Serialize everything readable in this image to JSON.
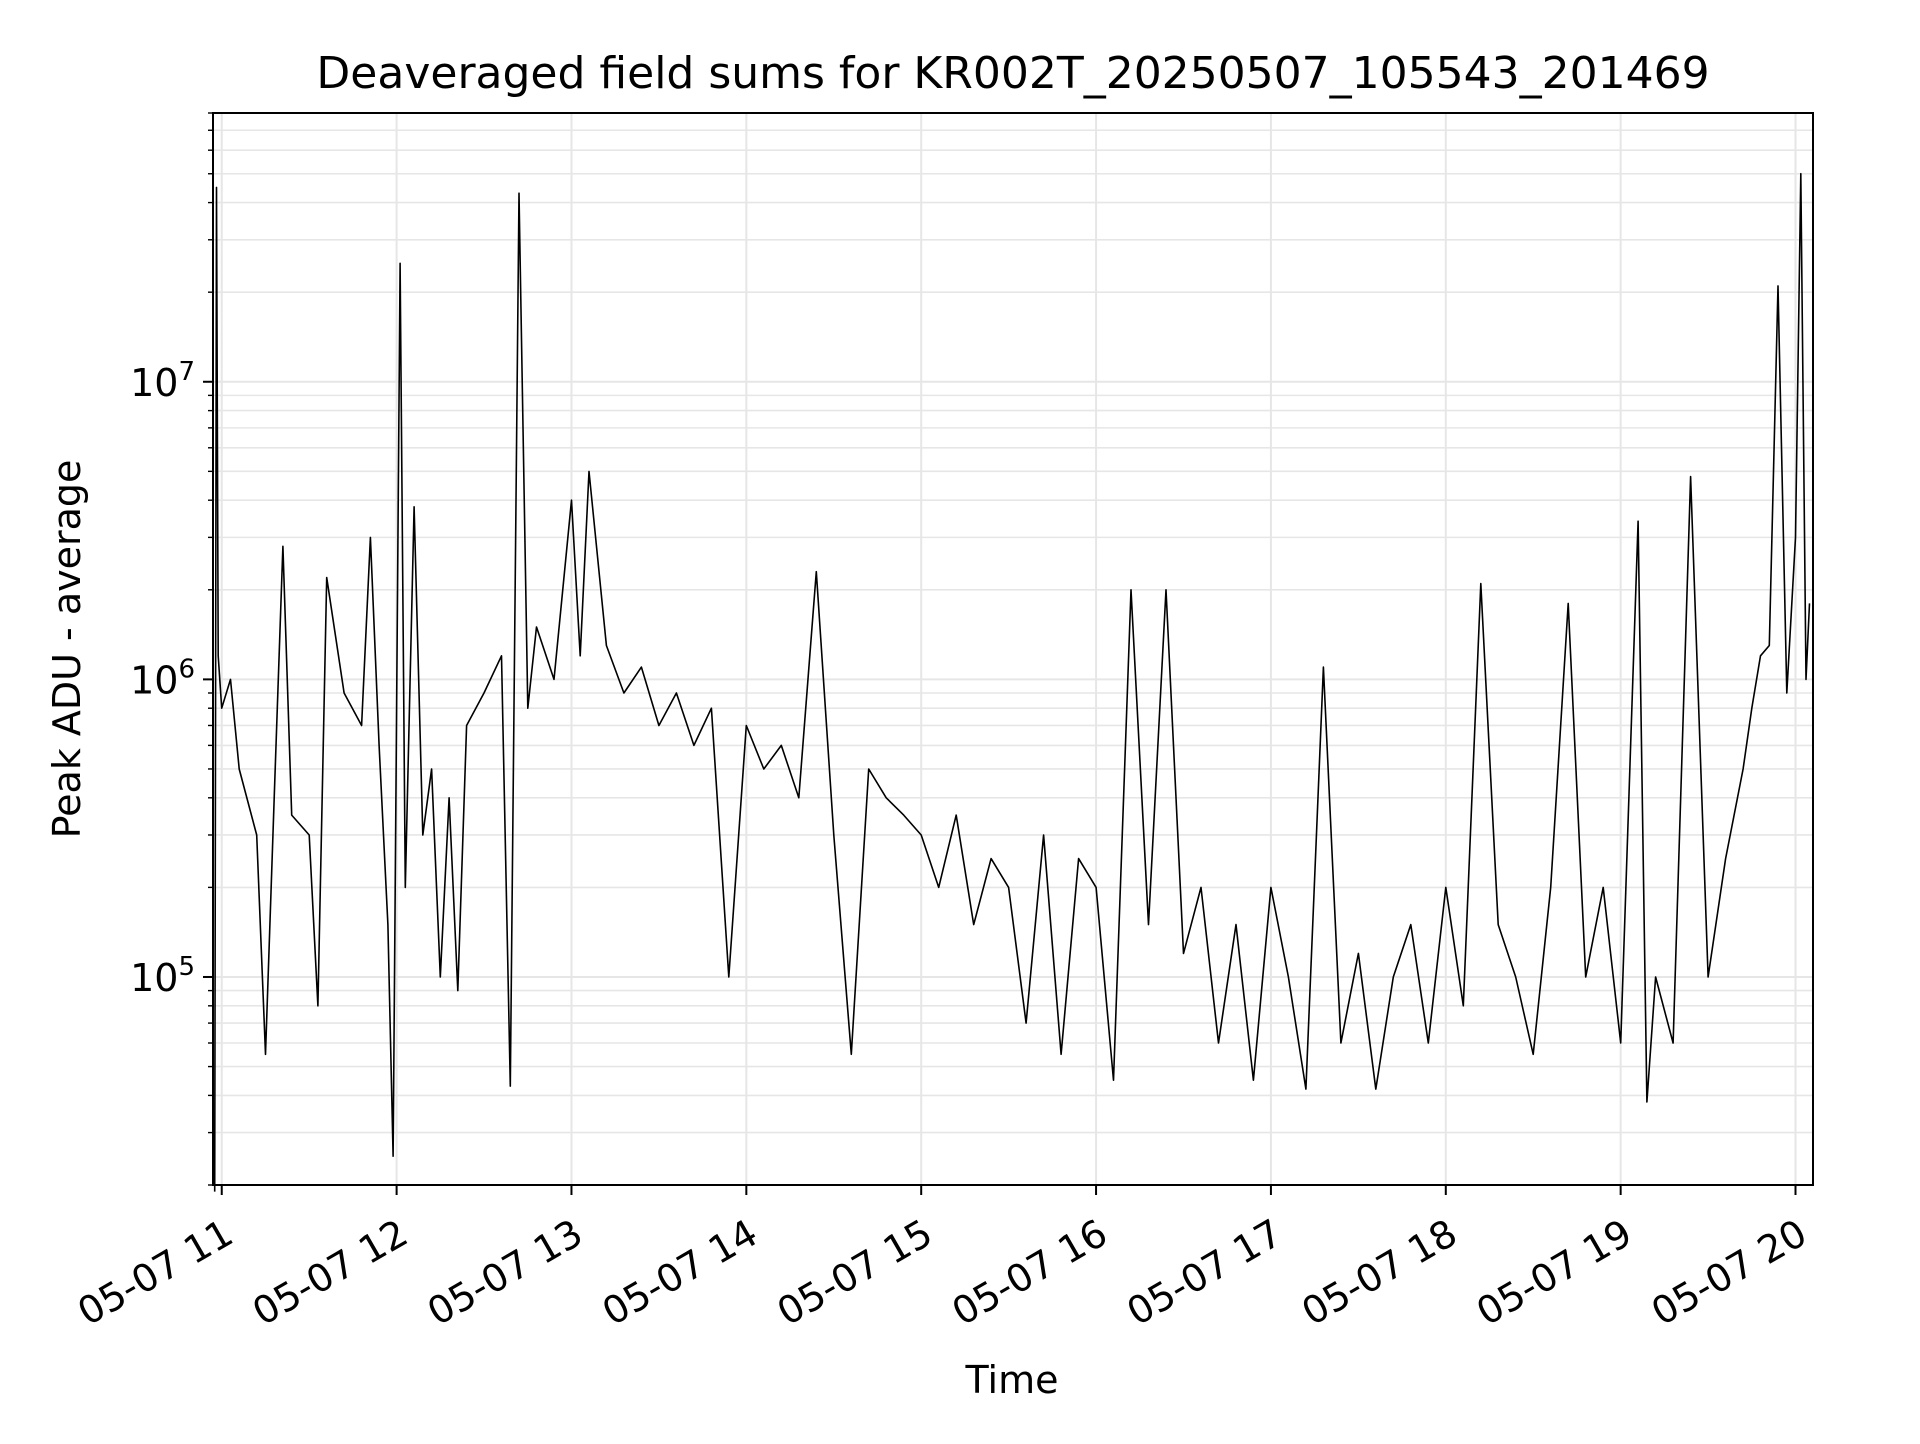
{
  "chart_data": {
    "type": "line",
    "title": "Deaveraged field sums for KR002T_20250507_105543_201469",
    "xlabel": "Time",
    "ylabel": "Peak ADU - average",
    "yscale": "log",
    "ylim": [
      20000,
      80000000
    ],
    "xlim_hours": [
      10.95,
      20.1
    ],
    "grid": true,
    "legend": "none",
    "line_color": "#000000",
    "grid_color": "#e6e6e6",
    "x_ticks": [
      {
        "label": "05-07 11",
        "hour": 11
      },
      {
        "label": "05-07 12",
        "hour": 12
      },
      {
        "label": "05-07 13",
        "hour": 13
      },
      {
        "label": "05-07 14",
        "hour": 14
      },
      {
        "label": "05-07 15",
        "hour": 15
      },
      {
        "label": "05-07 16",
        "hour": 16
      },
      {
        "label": "05-07 17",
        "hour": 17
      },
      {
        "label": "05-07 18",
        "hour": 18
      },
      {
        "label": "05-07 19",
        "hour": 19
      },
      {
        "label": "05-07 20",
        "hour": 20
      }
    ],
    "y_ticks": [
      {
        "base": "10",
        "exp": "5",
        "value": 100000
      },
      {
        "base": "10",
        "exp": "6",
        "value": 1000000
      },
      {
        "base": "10",
        "exp": "7",
        "value": 10000000
      }
    ],
    "series": [
      {
        "points": [
          [
            10.96,
            19000
          ],
          [
            10.97,
            45000000
          ],
          [
            10.98,
            1200000
          ],
          [
            11.0,
            800000
          ],
          [
            11.05,
            1000000
          ],
          [
            11.1,
            500000
          ],
          [
            11.2,
            300000
          ],
          [
            11.25,
            55000
          ],
          [
            11.3,
            400000
          ],
          [
            11.35,
            2800000
          ],
          [
            11.4,
            350000
          ],
          [
            11.5,
            300000
          ],
          [
            11.55,
            80000
          ],
          [
            11.6,
            2200000
          ],
          [
            11.7,
            900000
          ],
          [
            11.8,
            700000
          ],
          [
            11.85,
            3000000
          ],
          [
            11.9,
            600000
          ],
          [
            11.95,
            150000
          ],
          [
            11.98,
            25000
          ],
          [
            12.02,
            25000000
          ],
          [
            12.05,
            200000
          ],
          [
            12.1,
            3800000
          ],
          [
            12.15,
            300000
          ],
          [
            12.2,
            500000
          ],
          [
            12.25,
            100000
          ],
          [
            12.3,
            400000
          ],
          [
            12.35,
            90000
          ],
          [
            12.4,
            700000
          ],
          [
            12.5,
            900000
          ],
          [
            12.6,
            1200000
          ],
          [
            12.65,
            43000
          ],
          [
            12.7,
            43000000
          ],
          [
            12.75,
            800000
          ],
          [
            12.8,
            1500000
          ],
          [
            12.9,
            1000000
          ],
          [
            13.0,
            4000000
          ],
          [
            13.05,
            1200000
          ],
          [
            13.1,
            5000000
          ],
          [
            13.2,
            1300000
          ],
          [
            13.3,
            900000
          ],
          [
            13.4,
            1100000
          ],
          [
            13.5,
            700000
          ],
          [
            13.6,
            900000
          ],
          [
            13.7,
            600000
          ],
          [
            13.8,
            800000
          ],
          [
            13.9,
            100000
          ],
          [
            14.0,
            700000
          ],
          [
            14.1,
            500000
          ],
          [
            14.2,
            600000
          ],
          [
            14.3,
            400000
          ],
          [
            14.4,
            2300000
          ],
          [
            14.5,
            300000
          ],
          [
            14.6,
            55000
          ],
          [
            14.7,
            500000
          ],
          [
            14.8,
            400000
          ],
          [
            14.9,
            350000
          ],
          [
            15.0,
            300000
          ],
          [
            15.1,
            200000
          ],
          [
            15.2,
            350000
          ],
          [
            15.3,
            150000
          ],
          [
            15.4,
            250000
          ],
          [
            15.5,
            200000
          ],
          [
            15.6,
            70000
          ],
          [
            15.7,
            300000
          ],
          [
            15.8,
            55000
          ],
          [
            15.9,
            250000
          ],
          [
            16.0,
            200000
          ],
          [
            16.1,
            45000
          ],
          [
            16.2,
            2000000
          ],
          [
            16.3,
            150000
          ],
          [
            16.4,
            2000000
          ],
          [
            16.5,
            120000
          ],
          [
            16.6,
            200000
          ],
          [
            16.7,
            60000
          ],
          [
            16.8,
            150000
          ],
          [
            16.9,
            45000
          ],
          [
            17.0,
            200000
          ],
          [
            17.1,
            100000
          ],
          [
            17.2,
            42000
          ],
          [
            17.3,
            1100000
          ],
          [
            17.4,
            60000
          ],
          [
            17.5,
            120000
          ],
          [
            17.6,
            42000
          ],
          [
            17.7,
            100000
          ],
          [
            17.8,
            150000
          ],
          [
            17.9,
            60000
          ],
          [
            18.0,
            200000
          ],
          [
            18.1,
            80000
          ],
          [
            18.2,
            2100000
          ],
          [
            18.3,
            150000
          ],
          [
            18.4,
            100000
          ],
          [
            18.5,
            55000
          ],
          [
            18.6,
            200000
          ],
          [
            18.7,
            1800000
          ],
          [
            18.8,
            100000
          ],
          [
            18.9,
            200000
          ],
          [
            19.0,
            60000
          ],
          [
            19.1,
            3400000
          ],
          [
            19.15,
            38000
          ],
          [
            19.2,
            100000
          ],
          [
            19.3,
            60000
          ],
          [
            19.4,
            4800000
          ],
          [
            19.5,
            100000
          ],
          [
            19.6,
            250000
          ],
          [
            19.7,
            500000
          ],
          [
            19.75,
            800000
          ],
          [
            19.8,
            1200000
          ],
          [
            19.85,
            1300000
          ],
          [
            19.9,
            21000000
          ],
          [
            19.95,
            900000
          ],
          [
            20.0,
            3000000
          ],
          [
            20.03,
            50000000
          ],
          [
            20.06,
            1000000
          ],
          [
            20.08,
            1800000
          ]
        ]
      }
    ]
  }
}
